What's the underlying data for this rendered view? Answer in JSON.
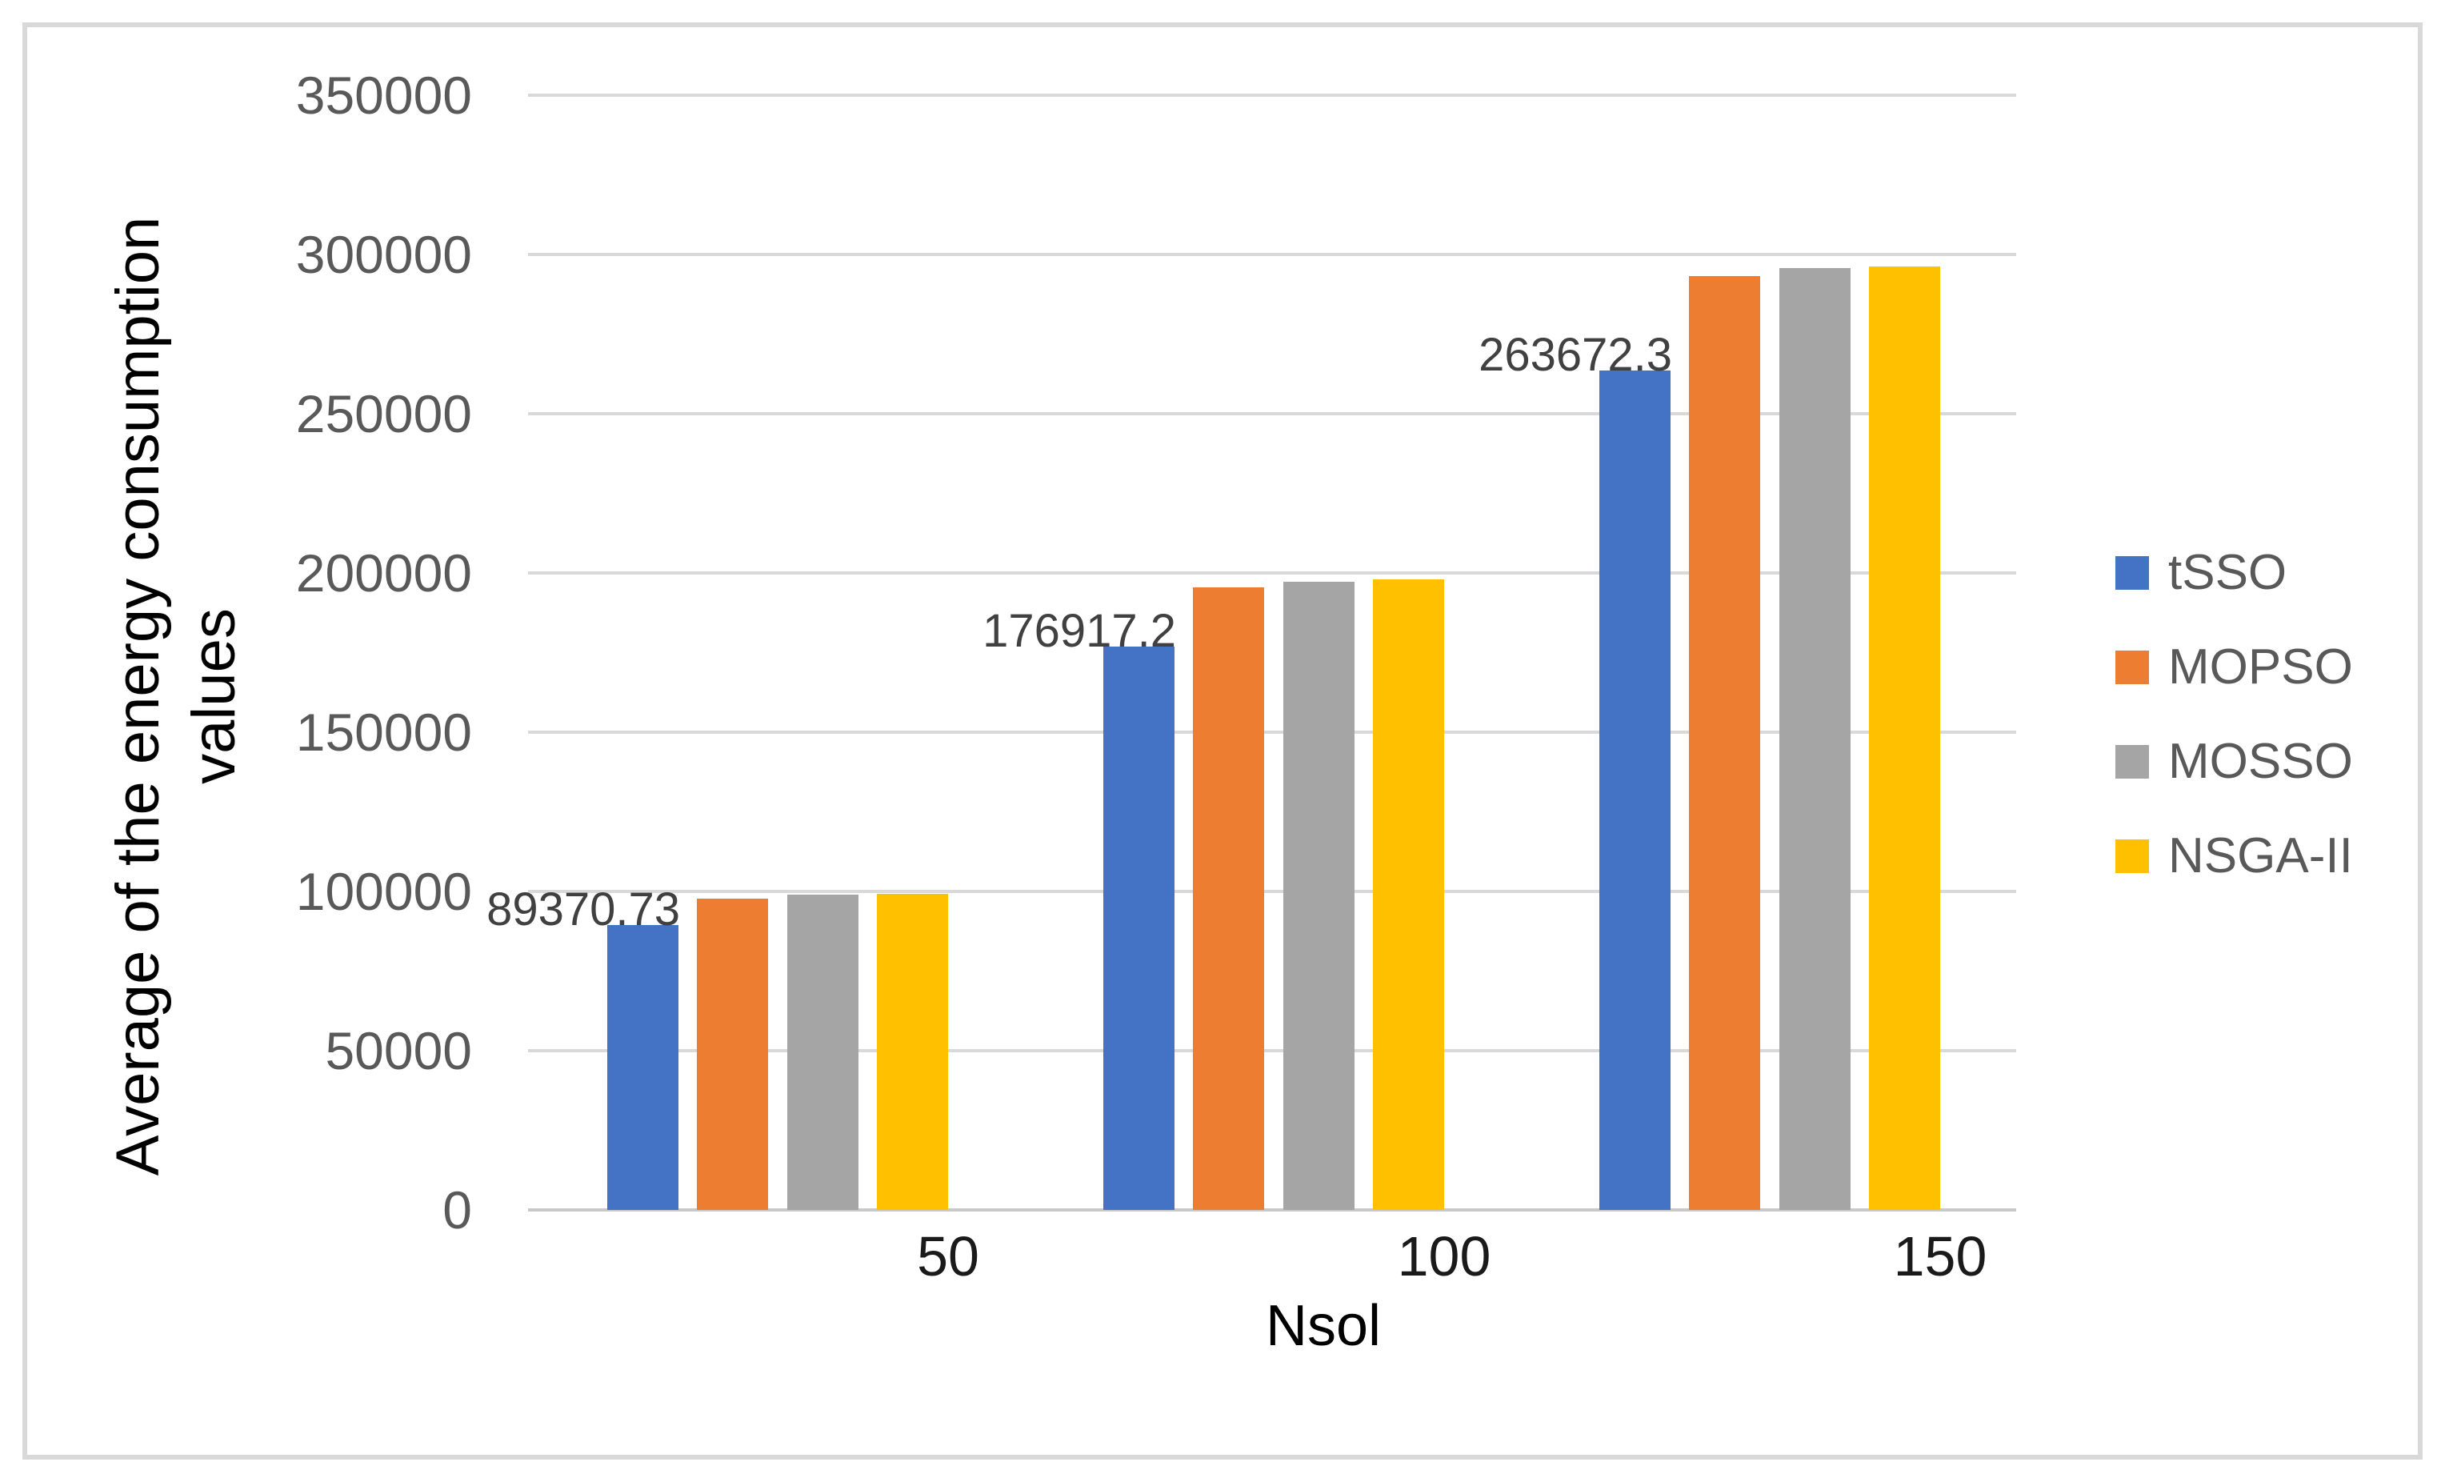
{
  "chart_data": {
    "type": "bar",
    "title": "",
    "xlabel": "Nsol",
    "ylabel": "Average of the energy consumption values",
    "categories": [
      "50",
      "100",
      "150"
    ],
    "series": [
      {
        "name": "tSSO",
        "color": "#4472C4",
        "values": [
          89370.73,
          176917.2,
          263672.3
        ],
        "data_labels": [
          "89370.73",
          "176917.2",
          "263672.3"
        ]
      },
      {
        "name": "MOPSO",
        "color": "#ED7D31",
        "values": [
          97800,
          195600,
          293300
        ],
        "data_labels": [
          null,
          null,
          null
        ]
      },
      {
        "name": "MOSSO",
        "color": "#A5A5A5",
        "values": [
          99000,
          197300,
          295800
        ],
        "data_labels": [
          null,
          null,
          null
        ]
      },
      {
        "name": "NSGA-II",
        "color": "#FFC000",
        "values": [
          99300,
          198100,
          296300
        ],
        "data_labels": [
          null,
          null,
          null
        ]
      }
    ],
    "y_ticks": [
      0,
      50000,
      100000,
      150000,
      200000,
      250000,
      300000,
      350000
    ],
    "ylim": [
      0,
      350000
    ],
    "grid": true,
    "legend_position": "right",
    "colors": {
      "gridline": "#D9D9D9",
      "tick_label": "#595959",
      "data_label": "#404040",
      "axis_title": "#000000",
      "frame_border": "#D9D9D9"
    }
  }
}
